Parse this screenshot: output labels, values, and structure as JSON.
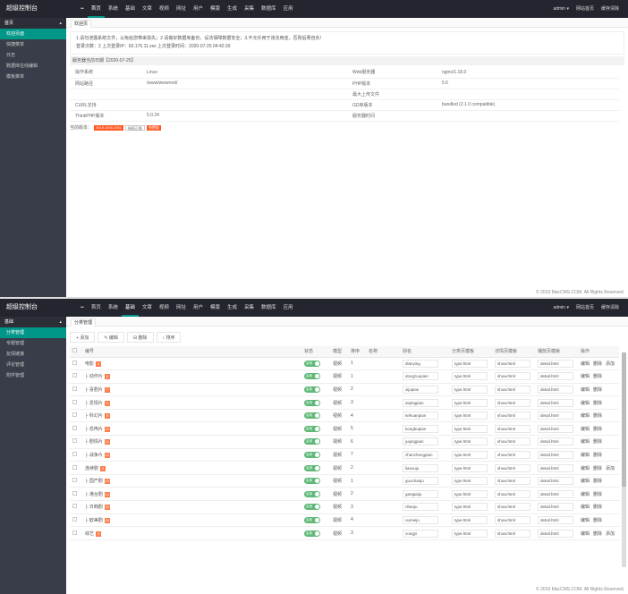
{
  "app": {
    "title": "超级控制台"
  },
  "nav": {
    "home_glyph": "••",
    "items": [
      "首页",
      "系统",
      "基础",
      "文章",
      "视频",
      "网址",
      "用户",
      "模版",
      "生成",
      "采集",
      "数据库",
      "应用"
    ]
  },
  "topright": {
    "user": "admin ▾",
    "links": [
      "网站首页",
      "缓存清除"
    ]
  },
  "panel1": {
    "side": {
      "head": "首页",
      "items": [
        "欢迎页面",
        "快捷菜单",
        "日志",
        "数据库在线编辑",
        "模板菜单"
      ]
    },
    "tab": "欢迎页",
    "notice_line1": "1.请勿泄露系统文件，以免给您带来损失；2.请做好数据库备份，设法保障数据安全；3.不允许用于违法用途，否则后果自负！",
    "notice_line2": "登录次数：2 上次登录IP：60.176.11.xxx 上次登录时间：2020-07-25 04:42:39",
    "block_title": "服务器当前日期【2020-07-25】",
    "info": [
      [
        "操作系统",
        "Linux",
        "Web服务器",
        "nginx/1.18.0"
      ],
      [
        "网站路径",
        "/www/wwwroot/",
        "PHP版本",
        "5.6"
      ],
      [
        "",
        "",
        "最大上传文件",
        ""
      ],
      [
        "CURL支持",
        "",
        "GD库版本",
        "bundled (2.1.0 compatible)"
      ],
      [
        "ThinkPHP版本",
        "5.0.24",
        "服务器时间",
        ""
      ]
    ],
    "auth_label": "当前版本：",
    "badges": [
      "2019.1000.1051",
      "授权正版",
      "免费版"
    ],
    "footer": "© 2019 MacCMS.COM. All Rights Reserved."
  },
  "panel2": {
    "side": {
      "head": "基础",
      "items": [
        "分类管理",
        "专题管理",
        "友情链接",
        "评论管理",
        "附件管理"
      ]
    },
    "tab": "分类管理",
    "toolbar": [
      "+ 添加",
      "✎ 编辑",
      "⊟ 删除",
      "↕ 排序"
    ],
    "headers": [
      "",
      "编号",
      "状态",
      "模型",
      "排序",
      "名称",
      "别名",
      "分类页模板",
      "详情页模板",
      "播放页模板",
      "操作"
    ],
    "rows": [
      {
        "id": "1",
        "name": "电影",
        "status": "启用",
        "model": "视频",
        "sort": "1",
        "alias": "dianying",
        "tpl1": "type.html",
        "tpl2": "show.html",
        "tpl3": "detail.html",
        "ops": [
          "编辑",
          "删除",
          "添加"
        ]
      },
      {
        "id": "6",
        "name": "├ 动作片",
        "status": "启用",
        "model": "视频",
        "sort": "1",
        "alias": "dongzuopian",
        "tpl1": "type.html",
        "tpl2": "show.html",
        "tpl3": "detail.html",
        "ops": [
          "编辑",
          "删除"
        ]
      },
      {
        "id": "7",
        "name": "├ 喜剧片",
        "status": "启用",
        "model": "视频",
        "sort": "2",
        "alias": "xijupian",
        "tpl1": "type.html",
        "tpl2": "show.html",
        "tpl3": "detail.html",
        "ops": [
          "编辑",
          "删除"
        ]
      },
      {
        "id": "8",
        "name": "├ 爱情片",
        "status": "启用",
        "model": "视频",
        "sort": "3",
        "alias": "aiqingpian",
        "tpl1": "type.html",
        "tpl2": "show.html",
        "tpl3": "detail.html",
        "ops": [
          "编辑",
          "删除"
        ]
      },
      {
        "id": "9",
        "name": "├ 科幻片",
        "status": "启用",
        "model": "视频",
        "sort": "4",
        "alias": "kehuanpian",
        "tpl1": "type.html",
        "tpl2": "show.html",
        "tpl3": "detail.html",
        "ops": [
          "编辑",
          "删除"
        ]
      },
      {
        "id": "10",
        "name": "├ 恐怖片",
        "status": "启用",
        "model": "视频",
        "sort": "5",
        "alias": "kongbupian",
        "tpl1": "type.html",
        "tpl2": "show.html",
        "tpl3": "detail.html",
        "ops": [
          "编辑",
          "删除"
        ]
      },
      {
        "id": "11",
        "name": "├ 剧情片",
        "status": "启用",
        "model": "视频",
        "sort": "6",
        "alias": "juqingpian",
        "tpl1": "type.html",
        "tpl2": "show.html",
        "tpl3": "detail.html",
        "ops": [
          "编辑",
          "删除"
        ]
      },
      {
        "id": "12",
        "name": "├ 战争片",
        "status": "启用",
        "model": "视频",
        "sort": "7",
        "alias": "zhanzhengpian",
        "tpl1": "type.html",
        "tpl2": "show.html",
        "tpl3": "detail.html",
        "ops": [
          "编辑",
          "删除"
        ]
      },
      {
        "id": "2",
        "name": "连续剧",
        "status": "启用",
        "model": "视频",
        "sort": "2",
        "alias": "lianxuju",
        "tpl1": "type.html",
        "tpl2": "show.html",
        "tpl3": "detail.html",
        "ops": [
          "编辑",
          "删除",
          "添加"
        ]
      },
      {
        "id": "13",
        "name": "├ 国产剧",
        "status": "启用",
        "model": "视频",
        "sort": "1",
        "alias": "guochanju",
        "tpl1": "type.html",
        "tpl2": "show.html",
        "tpl3": "detail.html",
        "ops": [
          "编辑",
          "删除"
        ]
      },
      {
        "id": "14",
        "name": "├ 港台剧",
        "status": "启用",
        "model": "视频",
        "sort": "2",
        "alias": "gangtaiju",
        "tpl1": "type.html",
        "tpl2": "show.html",
        "tpl3": "detail.html",
        "ops": [
          "编辑",
          "删除"
        ]
      },
      {
        "id": "15",
        "name": "├ 日韩剧",
        "status": "启用",
        "model": "视频",
        "sort": "3",
        "alias": "rihanju",
        "tpl1": "type.html",
        "tpl2": "show.html",
        "tpl3": "detail.html",
        "ops": [
          "编辑",
          "删除"
        ]
      },
      {
        "id": "16",
        "name": "├ 欧美剧",
        "status": "启用",
        "model": "视频",
        "sort": "4",
        "alias": "oumeiju",
        "tpl1": "type.html",
        "tpl2": "show.html",
        "tpl3": "detail.html",
        "ops": [
          "编辑",
          "删除"
        ]
      },
      {
        "id": "3",
        "name": "综艺",
        "status": "启用",
        "model": "视频",
        "sort": "3",
        "alias": "zongyi",
        "tpl1": "type.html",
        "tpl2": "show.html",
        "tpl3": "detail.html",
        "ops": [
          "编辑",
          "删除",
          "添加"
        ]
      }
    ],
    "footer": "© 2019 MacCMS.COM. All Rights Reserved."
  }
}
